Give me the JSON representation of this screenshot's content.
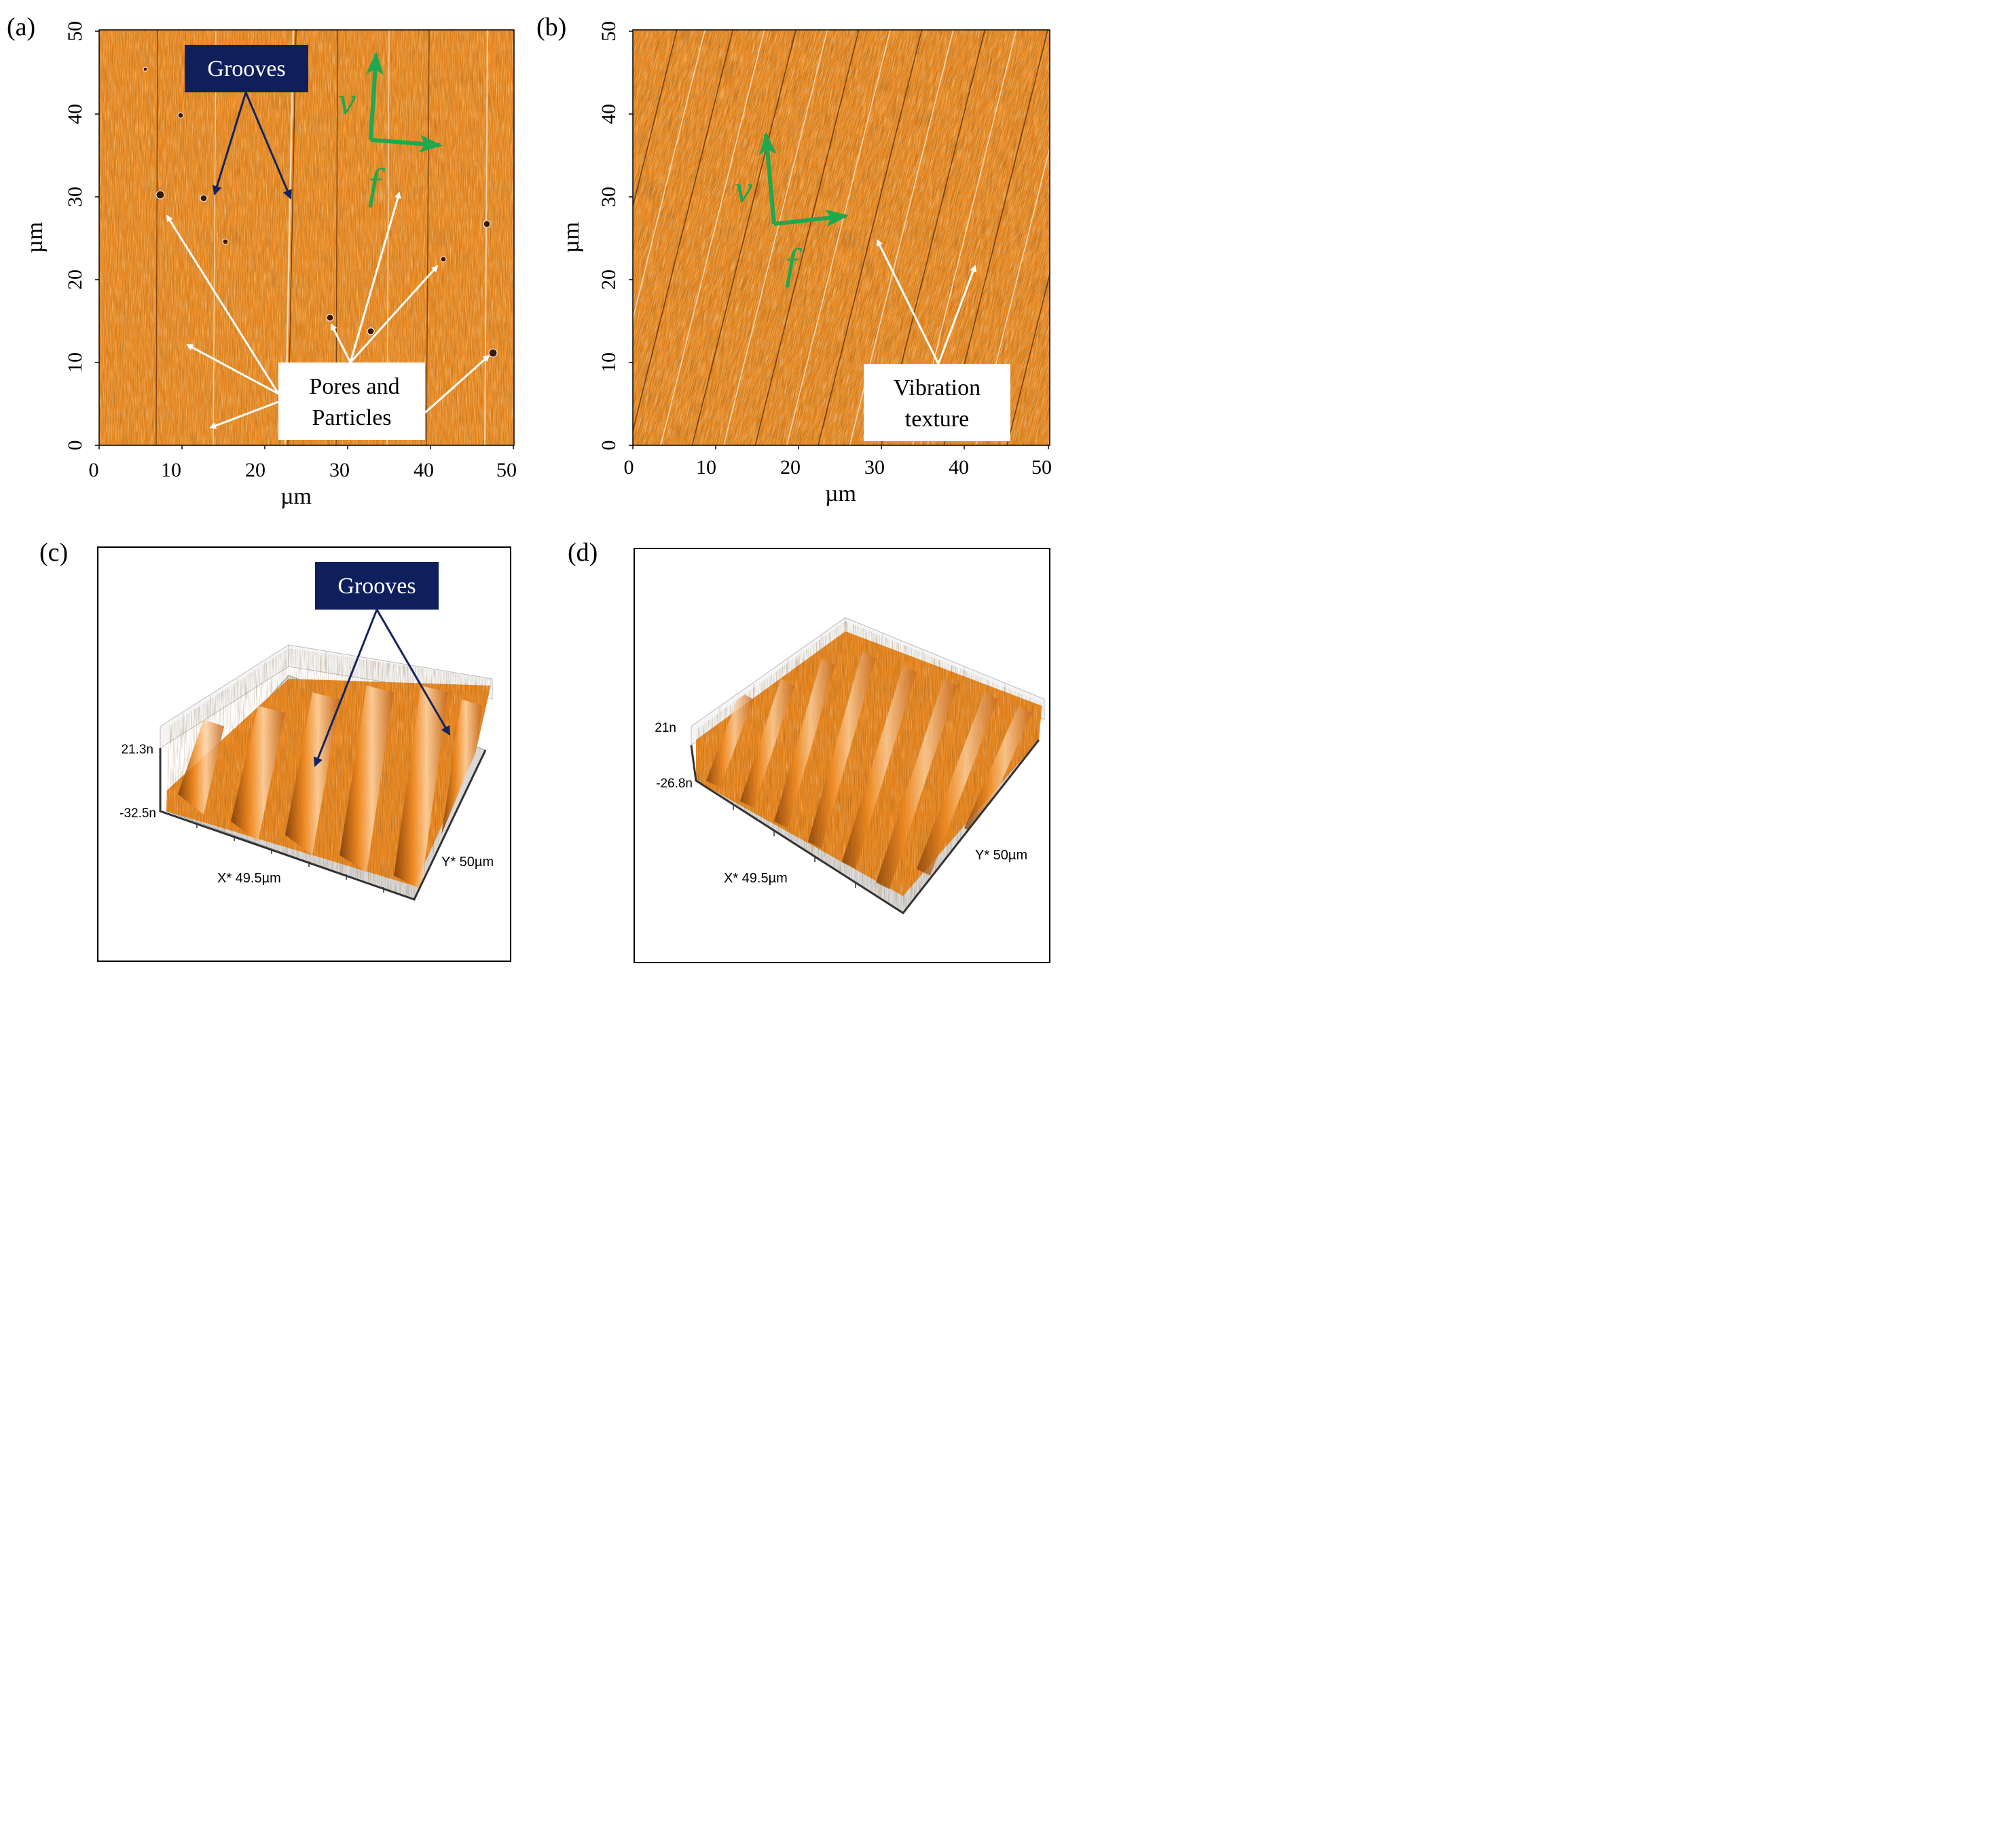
{
  "panels": {
    "a": {
      "label": "(a)",
      "x_ticks": [
        "0",
        "10",
        "20",
        "30",
        "40",
        "50"
      ],
      "y_ticks": [
        "0",
        "10",
        "20",
        "30",
        "40",
        "50"
      ],
      "xlabel": "µm",
      "ylabel": "µm",
      "grooves_label": "Grooves",
      "pores_label_line1": "Pores and",
      "pores_label_line2": "Particles",
      "v_label": "v",
      "f_label": "f"
    },
    "b": {
      "label": "(b)",
      "x_ticks": [
        "0",
        "10",
        "20",
        "30",
        "40",
        "50"
      ],
      "y_ticks": [
        "0",
        "10",
        "20",
        "30",
        "40",
        "50"
      ],
      "xlabel": "µm",
      "ylabel": "µm",
      "vibration_label_line1": "Vibration",
      "vibration_label_line2": "texture",
      "v_label": "v",
      "f_label": "f"
    },
    "c": {
      "label": "(c)",
      "grooves_label": "Grooves",
      "z_max": "21.3n",
      "z_min": "-32.5n",
      "x_axis": "X* 49.5µm",
      "y_axis": "Y* 50µm"
    },
    "d": {
      "label": "(d)",
      "z_max": "21n",
      "z_min": "-26.8n",
      "x_axis": "X* 49.5µm",
      "y_axis": "Y* 50µm"
    }
  },
  "colors": {
    "surface_orange": "#e8861f",
    "groove_label_bg": "#0f1f5c",
    "groove_arrow": "#14245e",
    "feed_arrows": "#1fa84f",
    "white_arrows": "#ffffff"
  }
}
